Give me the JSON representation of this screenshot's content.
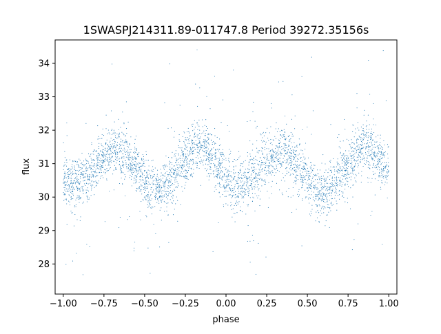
{
  "chart_data": {
    "type": "scatter",
    "title": "1SWASPJ214311.89-011747.8 Period 39272.35156s",
    "xlabel": "phase",
    "ylabel": "flux",
    "xlim": [
      -1.05,
      1.05
    ],
    "ylim": [
      27.1,
      34.7
    ],
    "xticks": [
      -1.0,
      -0.75,
      -0.5,
      -0.25,
      0.0,
      0.25,
      0.5,
      0.75,
      1.0
    ],
    "xtick_labels": [
      "−1.00",
      "−0.75",
      "−0.50",
      "−0.25",
      "0.00",
      "0.25",
      "0.50",
      "0.75",
      "1.00"
    ],
    "yticks": [
      28,
      29,
      30,
      31,
      32,
      33,
      34
    ],
    "ytick_labels": [
      "28",
      "29",
      "30",
      "31",
      "32",
      "33",
      "34"
    ],
    "grid": false,
    "point_color": "#1f77b4",
    "series": [
      {
        "x": [
          -1.0,
          -0.95,
          -0.9,
          -0.85,
          -0.8,
          -0.75,
          -0.7,
          -0.65,
          -0.6,
          -0.55,
          -0.5,
          -0.45,
          -0.4,
          -0.35,
          -0.3,
          -0.25,
          -0.2,
          -0.15,
          -0.1,
          -0.05,
          0.0,
          0.05,
          0.1,
          0.15,
          0.2,
          0.25,
          0.3,
          0.35,
          0.4,
          0.45,
          0.5,
          0.55,
          0.6,
          0.65,
          0.7,
          0.75,
          0.8,
          0.85,
          0.9,
          0.95,
          1.0
        ],
        "values": [
          30.6,
          30.4,
          30.4,
          30.6,
          30.9,
          31.2,
          31.4,
          31.4,
          31.2,
          30.8,
          30.4,
          30.2,
          30.2,
          30.4,
          30.8,
          31.1,
          31.4,
          31.5,
          31.3,
          30.9,
          30.6,
          30.3,
          30.3,
          30.5,
          30.8,
          31.1,
          31.3,
          31.4,
          31.2,
          30.9,
          30.5,
          30.2,
          30.1,
          30.3,
          30.6,
          31.0,
          31.3,
          31.5,
          31.4,
          31.1,
          30.7
        ],
        "spread": 0.38,
        "points_per_curve_point": 90,
        "outliers_per_curve_point": 6
      }
    ]
  }
}
